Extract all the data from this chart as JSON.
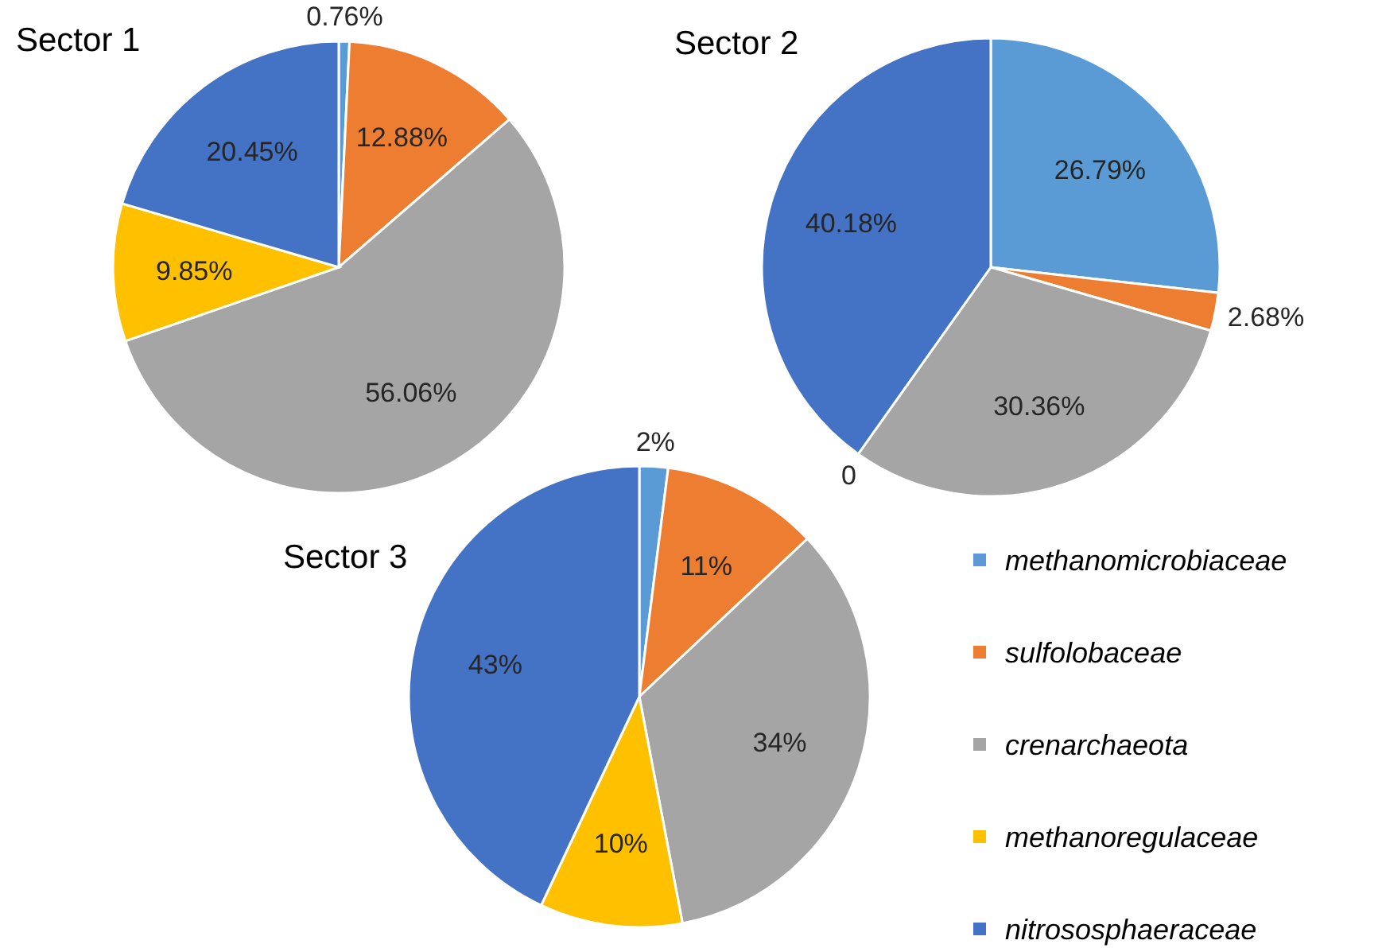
{
  "chart_data": [
    {
      "type": "pie",
      "title": "Sector 1",
      "categories": [
        null,
        null,
        null,
        null,
        null
      ],
      "values": [
        0.76,
        12.88,
        56.06,
        9.85,
        20.45
      ],
      "value_labels": [
        "0.76%",
        "12.88%",
        "56.06%",
        "9.85%",
        "20.45%"
      ],
      "colors": [
        "#5b9bd5",
        "#ed7d31",
        "#a5a5a5",
        "#ffc000",
        "#4472c4"
      ],
      "legend": false
    },
    {
      "type": "pie",
      "title": "Sector 2",
      "categories": [
        null,
        null,
        null,
        null,
        null
      ],
      "values": [
        26.79,
        2.68,
        30.36,
        0,
        40.18
      ],
      "value_labels": [
        "26.79%",
        "2.68%",
        "30.36%",
        "0",
        "40.18%"
      ],
      "colors": [
        "#5b9bd5",
        "#ed7d31",
        "#a5a5a5",
        "#ffc000",
        "#4472c4"
      ],
      "legend": false
    },
    {
      "type": "pie",
      "title": "Sector 3",
      "categories": [
        "methanomicrobiaceae",
        "sulfolobaceae",
        "crenarchaeota",
        "methanoregulaceae",
        "nitrososphaeraceae"
      ],
      "values": [
        2,
        11,
        34,
        10,
        43
      ],
      "value_labels": [
        "2%",
        "11%",
        "34%",
        "10%",
        "43%"
      ],
      "colors": [
        "#5b9bd5",
        "#ed7d31",
        "#a5a5a5",
        "#ffc000",
        "#4472c4"
      ],
      "legend": "right"
    }
  ]
}
